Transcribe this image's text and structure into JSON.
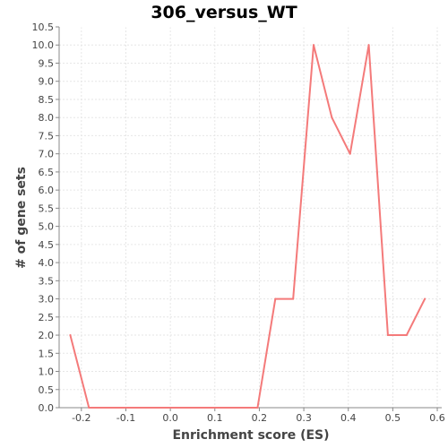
{
  "chart_data": {
    "type": "line",
    "title": "306_versus_WT",
    "xlabel": "Enrichment score (ES)",
    "ylabel": "# of gene sets",
    "xlim": [
      -0.25,
      0.61
    ],
    "ylim": [
      0.0,
      10.5
    ],
    "xticks": [
      "-0.2",
      "-0.1",
      "0.0",
      "0.1",
      "0.2",
      "0.3",
      "0.4",
      "0.5",
      "0.6"
    ],
    "yticks": [
      "0.0",
      "0.5",
      "1.0",
      "1.5",
      "2.0",
      "2.5",
      "3.0",
      "3.5",
      "4.0",
      "4.5",
      "5.0",
      "5.5",
      "6.0",
      "6.5",
      "7.0",
      "7.5",
      "8.0",
      "8.5",
      "9.0",
      "9.5",
      "10.0",
      "10.5"
    ],
    "grid": true,
    "color": "#f47a7a",
    "x": [
      -0.225,
      -0.183,
      0.196,
      0.236,
      0.276,
      0.322,
      0.363,
      0.404,
      0.446,
      0.489,
      0.531,
      0.572
    ],
    "y": [
      2,
      0,
      0,
      3,
      3,
      10,
      8,
      7,
      10,
      2,
      2,
      3
    ]
  }
}
